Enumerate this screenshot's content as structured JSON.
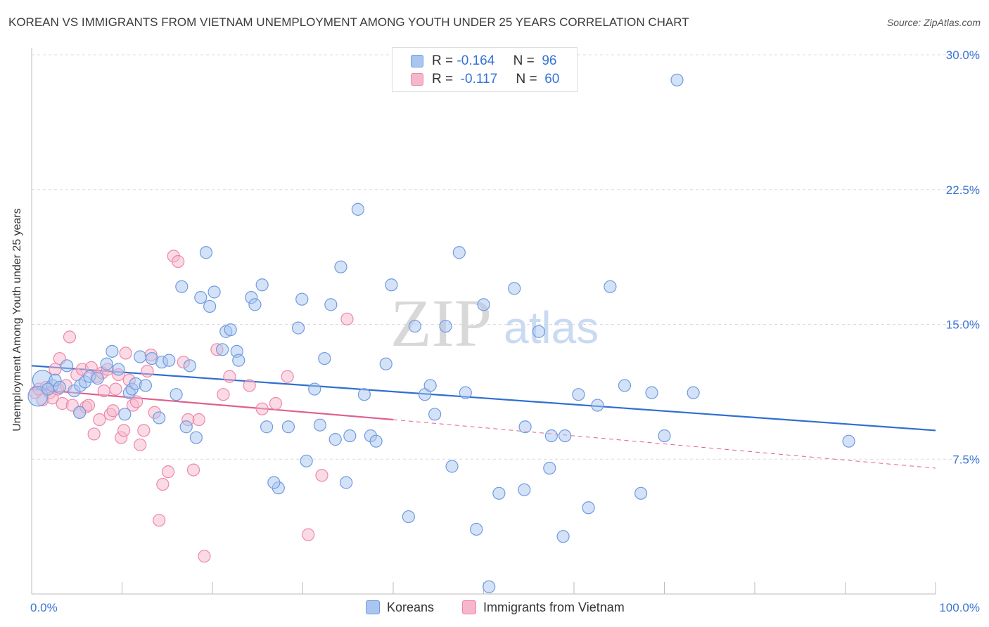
{
  "title": "KOREAN VS IMMIGRANTS FROM VIETNAM UNEMPLOYMENT AMONG YOUTH UNDER 25 YEARS CORRELATION CHART",
  "source": "Source: ZipAtlas.com",
  "watermark": {
    "zip": "ZIP",
    "atlas": "atlas"
  },
  "legend": {
    "rows": [
      {
        "r_label": "R =",
        "r_value": "-0.164",
        "n_label": "N =",
        "n_value": "96"
      },
      {
        "r_label": "R =",
        "r_value": "-0.117",
        "n_label": "N =",
        "n_value": "60"
      }
    ]
  },
  "bottom_legend": {
    "koreans": "Koreans",
    "vietnam": "Immigrants from Vietnam"
  },
  "colors": {
    "blue_fill": "#a9c6f0",
    "blue_stroke": "#6f9be0",
    "blue_line": "#2f6fd1",
    "pink_fill": "#f6b6cb",
    "pink_stroke": "#ee88aa",
    "pink_line": "#e0608e",
    "tick_label": "#3c74d4",
    "grid": "#dcdcdc"
  },
  "chart_data": {
    "type": "scatter",
    "title": "KOREAN VS IMMIGRANTS FROM VIETNAM UNEMPLOYMENT AMONG YOUTH UNDER 25 YEARS CORRELATION CHART",
    "xlabel": "",
    "ylabel": "Unemployment Among Youth under 25 years",
    "xlim": [
      0,
      100
    ],
    "ylim": [
      0,
      30
    ],
    "x_tick_labels": [
      "0.0%",
      "100.0%"
    ],
    "y_ticks": [
      7.5,
      15.0,
      22.5,
      30.0
    ],
    "y_tick_labels": [
      "7.5%",
      "15.0%",
      "22.5%",
      "30.0%"
    ],
    "grid": "horizontal dashed",
    "legend_position": "top-center",
    "series": [
      {
        "name": "Koreans",
        "color": "#a9c6f0",
        "r": -0.164,
        "n": 96,
        "trend": {
          "x": [
            0,
            100
          ],
          "y": [
            12.7,
            9.1
          ]
        },
        "points": [
          [
            1.2,
            11.9
          ],
          [
            0.7,
            11.0
          ],
          [
            2.3,
            11.6
          ],
          [
            1.8,
            11.4
          ],
          [
            2.6,
            11.9
          ],
          [
            3.1,
            11.5
          ],
          [
            3.9,
            12.7
          ],
          [
            4.7,
            11.3
          ],
          [
            5.4,
            11.6
          ],
          [
            5.9,
            11.8
          ],
          [
            5.3,
            10.1
          ],
          [
            6.4,
            12.1
          ],
          [
            7.3,
            12.0
          ],
          [
            8.3,
            12.8
          ],
          [
            8.9,
            13.5
          ],
          [
            9.6,
            12.5
          ],
          [
            10.3,
            10.0
          ],
          [
            10.8,
            11.2
          ],
          [
            11.1,
            11.4
          ],
          [
            11.5,
            11.7
          ],
          [
            12.0,
            13.2
          ],
          [
            12.6,
            11.6
          ],
          [
            13.3,
            13.1
          ],
          [
            14.1,
            9.8
          ],
          [
            14.4,
            12.9
          ],
          [
            15.2,
            13.0
          ],
          [
            16.0,
            11.1
          ],
          [
            16.6,
            17.1
          ],
          [
            17.1,
            9.3
          ],
          [
            17.5,
            12.7
          ],
          [
            18.2,
            8.7
          ],
          [
            18.7,
            16.5
          ],
          [
            19.3,
            19.0
          ],
          [
            19.7,
            16.0
          ],
          [
            20.2,
            16.8
          ],
          [
            21.1,
            13.6
          ],
          [
            21.5,
            14.6
          ],
          [
            22.0,
            14.7
          ],
          [
            22.7,
            13.5
          ],
          [
            22.9,
            13.0
          ],
          [
            24.3,
            16.5
          ],
          [
            24.7,
            16.1
          ],
          [
            25.5,
            17.2
          ],
          [
            26.0,
            9.3
          ],
          [
            27.3,
            5.9
          ],
          [
            26.8,
            6.2
          ],
          [
            28.4,
            9.3
          ],
          [
            29.5,
            14.8
          ],
          [
            29.9,
            16.4
          ],
          [
            30.4,
            7.4
          ],
          [
            31.3,
            11.4
          ],
          [
            31.9,
            9.4
          ],
          [
            32.4,
            13.1
          ],
          [
            33.1,
            16.1
          ],
          [
            33.6,
            8.6
          ],
          [
            34.2,
            18.2
          ],
          [
            34.8,
            6.2
          ],
          [
            35.2,
            8.8
          ],
          [
            36.1,
            21.4
          ],
          [
            36.8,
            11.1
          ],
          [
            37.5,
            8.8
          ],
          [
            38.1,
            8.5
          ],
          [
            39.2,
            12.8
          ],
          [
            39.8,
            17.2
          ],
          [
            41.7,
            4.3
          ],
          [
            42.4,
            14.9
          ],
          [
            43.5,
            11.1
          ],
          [
            44.1,
            11.6
          ],
          [
            44.6,
            10.0
          ],
          [
            45.8,
            14.9
          ],
          [
            46.5,
            7.1
          ],
          [
            47.3,
            19.0
          ],
          [
            48.0,
            11.2
          ],
          [
            49.2,
            3.6
          ],
          [
            50.0,
            16.1
          ],
          [
            50.6,
            0.4
          ],
          [
            51.7,
            5.6
          ],
          [
            53.4,
            17.0
          ],
          [
            54.6,
            9.3
          ],
          [
            54.5,
            5.8
          ],
          [
            56.1,
            14.6
          ],
          [
            57.3,
            7.0
          ],
          [
            57.5,
            8.8
          ],
          [
            58.8,
            3.2
          ],
          [
            59.0,
            8.8
          ],
          [
            60.5,
            11.1
          ],
          [
            61.6,
            4.8
          ],
          [
            62.6,
            10.5
          ],
          [
            64.0,
            17.1
          ],
          [
            65.6,
            11.6
          ],
          [
            67.4,
            5.6
          ],
          [
            68.6,
            11.2
          ],
          [
            70.0,
            8.8
          ],
          [
            71.4,
            28.6
          ],
          [
            73.2,
            11.2
          ],
          [
            90.4,
            8.5
          ]
        ]
      },
      {
        "name": "Immigrants from Vietnam",
        "color": "#f6b6cb",
        "r": -0.117,
        "n": 60,
        "trend": {
          "x": [
            0,
            40
          ],
          "y": [
            11.4,
            9.7
          ]
        },
        "trend_extension": {
          "x": [
            40,
            100
          ],
          "y": [
            9.7,
            7.0
          ]
        },
        "points": [
          [
            0.4,
            11.2
          ],
          [
            0.8,
            11.4
          ],
          [
            1.2,
            10.8
          ],
          [
            1.6,
            11.5
          ],
          [
            2.0,
            11.2
          ],
          [
            2.3,
            10.9
          ],
          [
            2.6,
            12.5
          ],
          [
            2.9,
            11.4
          ],
          [
            3.1,
            13.1
          ],
          [
            3.4,
            10.6
          ],
          [
            3.8,
            11.6
          ],
          [
            4.2,
            14.3
          ],
          [
            4.5,
            10.5
          ],
          [
            5.0,
            12.2
          ],
          [
            5.3,
            10.1
          ],
          [
            5.6,
            12.5
          ],
          [
            6.0,
            10.4
          ],
          [
            6.3,
            10.5
          ],
          [
            6.6,
            12.6
          ],
          [
            6.9,
            8.9
          ],
          [
            7.2,
            12.1
          ],
          [
            7.5,
            9.7
          ],
          [
            7.8,
            12.3
          ],
          [
            8.0,
            11.3
          ],
          [
            8.4,
            12.5
          ],
          [
            8.7,
            10.0
          ],
          [
            9.0,
            10.2
          ],
          [
            9.3,
            11.4
          ],
          [
            9.6,
            12.2
          ],
          [
            9.9,
            8.7
          ],
          [
            10.2,
            9.1
          ],
          [
            10.4,
            13.4
          ],
          [
            10.8,
            11.9
          ],
          [
            11.2,
            10.5
          ],
          [
            11.6,
            10.7
          ],
          [
            12.0,
            8.3
          ],
          [
            12.4,
            9.1
          ],
          [
            12.8,
            12.4
          ],
          [
            13.2,
            13.3
          ],
          [
            13.6,
            10.1
          ],
          [
            14.1,
            4.1
          ],
          [
            14.5,
            6.1
          ],
          [
            15.1,
            6.8
          ],
          [
            15.7,
            18.8
          ],
          [
            16.2,
            18.5
          ],
          [
            16.8,
            12.9
          ],
          [
            17.3,
            9.7
          ],
          [
            17.9,
            6.9
          ],
          [
            18.5,
            9.7
          ],
          [
            19.1,
            2.1
          ],
          [
            20.5,
            13.6
          ],
          [
            21.2,
            11.1
          ],
          [
            21.9,
            12.1
          ],
          [
            24.1,
            11.6
          ],
          [
            25.5,
            10.3
          ],
          [
            27.0,
            10.6
          ],
          [
            28.3,
            12.1
          ],
          [
            30.6,
            3.3
          ],
          [
            32.1,
            6.6
          ],
          [
            34.9,
            15.3
          ]
        ]
      }
    ]
  }
}
